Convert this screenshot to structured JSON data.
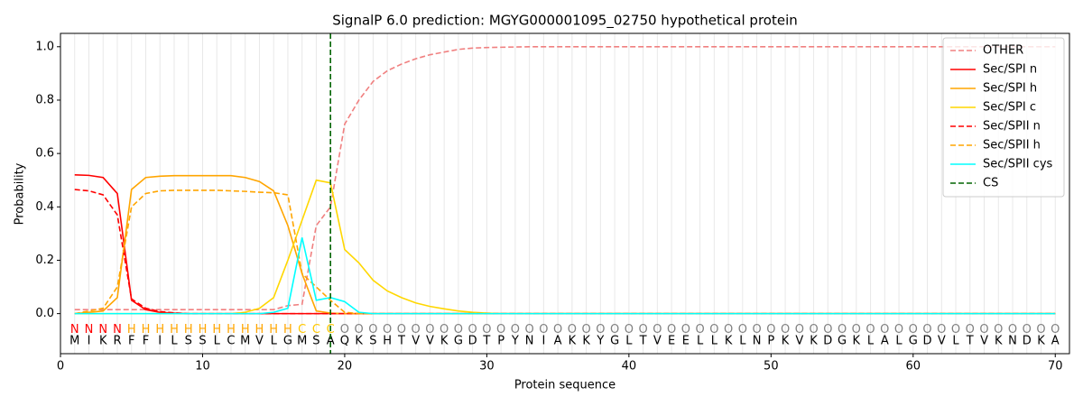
{
  "chart_data": {
    "type": "line",
    "title": "SignalP 6.0 prediction: MGYG000001095_02750 hypothetical protein",
    "xlabel": "Protein sequence",
    "ylabel": "Probability",
    "x": [
      1,
      2,
      3,
      4,
      5,
      6,
      7,
      8,
      9,
      10,
      11,
      12,
      13,
      14,
      15,
      16,
      17,
      18,
      19,
      20,
      21,
      22,
      23,
      24,
      25,
      26,
      27,
      28,
      29,
      30,
      31,
      32,
      33,
      34,
      35,
      36,
      37,
      38,
      39,
      40,
      41,
      42,
      43,
      44,
      45,
      46,
      47,
      48,
      49,
      50,
      51,
      52,
      53,
      54,
      55,
      56,
      57,
      58,
      59,
      60,
      61,
      62,
      63,
      64,
      65,
      66,
      67,
      68,
      69,
      70
    ],
    "sequence": [
      "M",
      "I",
      "K",
      "R",
      "F",
      "F",
      "I",
      "L",
      "S",
      "S",
      "L",
      "C",
      "M",
      "V",
      "L",
      "G",
      "M",
      "S",
      "A",
      "Q",
      "K",
      "S",
      "H",
      "T",
      "V",
      "V",
      "K",
      "G",
      "D",
      "T",
      "P",
      "Y",
      "N",
      "I",
      "A",
      "K",
      "K",
      "Y",
      "G",
      "L",
      "T",
      "V",
      "E",
      "E",
      "L",
      "L",
      "K",
      "L",
      "N",
      "P",
      "K",
      "V",
      "K",
      "D",
      "G",
      "K",
      "L",
      "A",
      "L",
      "G",
      "D",
      "V",
      "L",
      "T",
      "V",
      "K",
      "N",
      "D",
      "K",
      "A"
    ],
    "labels": [
      "N",
      "N",
      "N",
      "N",
      "H",
      "H",
      "H",
      "H",
      "H",
      "H",
      "H",
      "H",
      "H",
      "H",
      "H",
      "H",
      "C",
      "C",
      "C",
      "O",
      "O",
      "O",
      "O",
      "O",
      "O",
      "O",
      "O",
      "O",
      "O",
      "O",
      "O",
      "O",
      "O",
      "O",
      "O",
      "O",
      "O",
      "O",
      "O",
      "O",
      "O",
      "O",
      "O",
      "O",
      "O",
      "O",
      "O",
      "O",
      "O",
      "O",
      "O",
      "O",
      "O",
      "O",
      "O",
      "O",
      "O",
      "O",
      "O",
      "O",
      "O",
      "O",
      "O",
      "O",
      "O",
      "O",
      "O",
      "O",
      "O",
      "O"
    ],
    "label_colors": {
      "N": "#ff0000",
      "H": "#ffa500",
      "C": "#ffc800",
      "O": "#808080"
    },
    "series": [
      {
        "name": "OTHER",
        "color": "#f08080",
        "dash": true,
        "values": [
          0.015,
          0.015,
          0.015,
          0.015,
          0.015,
          0.015,
          0.015,
          0.015,
          0.015,
          0.015,
          0.015,
          0.015,
          0.015,
          0.015,
          0.015,
          0.03,
          0.035,
          0.33,
          0.4,
          0.71,
          0.8,
          0.87,
          0.91,
          0.935,
          0.955,
          0.97,
          0.98,
          0.99,
          0.995,
          0.997,
          0.998,
          0.999,
          1,
          1,
          1,
          1,
          1,
          1,
          1,
          1,
          1,
          1,
          1,
          1,
          1,
          1,
          1,
          1,
          1,
          1,
          1,
          1,
          1,
          1,
          1,
          1,
          1,
          1,
          1,
          1,
          1,
          1,
          1,
          1,
          1,
          1,
          1,
          1,
          1,
          1
        ]
      },
      {
        "name": "Sec/SPI n",
        "color": "#ff0000",
        "dash": false,
        "values": [
          0.52,
          0.518,
          0.51,
          0.45,
          0.05,
          0.015,
          0.005,
          0.002,
          0,
          0,
          0,
          0,
          0,
          0,
          0,
          0,
          0,
          0,
          0,
          0,
          0,
          0,
          0,
          0,
          0,
          0,
          0,
          0,
          0,
          0,
          0,
          0,
          0,
          0,
          0,
          0,
          0,
          0,
          0,
          0,
          0,
          0,
          0,
          0,
          0,
          0,
          0,
          0,
          0,
          0,
          0,
          0,
          0,
          0,
          0,
          0,
          0,
          0,
          0,
          0,
          0,
          0,
          0,
          0,
          0,
          0,
          0,
          0,
          0,
          0
        ]
      },
      {
        "name": "Sec/SPI h",
        "color": "#ffa500",
        "dash": false,
        "values": [
          0,
          0.005,
          0.01,
          0.06,
          0.465,
          0.51,
          0.515,
          0.517,
          0.517,
          0.517,
          0.517,
          0.517,
          0.51,
          0.495,
          0.46,
          0.33,
          0.15,
          0.01,
          0.002,
          0,
          0,
          0,
          0,
          0,
          0,
          0,
          0,
          0,
          0,
          0,
          0,
          0,
          0,
          0,
          0,
          0,
          0,
          0,
          0,
          0,
          0,
          0,
          0,
          0,
          0,
          0,
          0,
          0,
          0,
          0,
          0,
          0,
          0,
          0,
          0,
          0,
          0,
          0,
          0,
          0,
          0,
          0,
          0,
          0,
          0,
          0,
          0,
          0,
          0,
          0
        ]
      },
      {
        "name": "Sec/SPI c",
        "color": "#ffd700",
        "dash": false,
        "values": [
          0,
          0,
          0,
          0,
          0,
          0,
          0,
          0,
          0,
          0,
          0,
          0,
          0.005,
          0.02,
          0.06,
          0.2,
          0.35,
          0.5,
          0.49,
          0.24,
          0.19,
          0.125,
          0.085,
          0.06,
          0.04,
          0.027,
          0.018,
          0.01,
          0.005,
          0.002,
          0,
          0,
          0,
          0,
          0,
          0,
          0,
          0,
          0,
          0,
          0,
          0,
          0,
          0,
          0,
          0,
          0,
          0,
          0,
          0,
          0,
          0,
          0,
          0,
          0,
          0,
          0,
          0,
          0,
          0,
          0,
          0,
          0,
          0,
          0,
          0,
          0,
          0,
          0,
          0
        ]
      },
      {
        "name": "Sec/SPII n",
        "color": "#ff0000",
        "dash": true,
        "values": [
          0.465,
          0.46,
          0.445,
          0.37,
          0.055,
          0.02,
          0.008,
          0.003,
          0,
          0,
          0,
          0,
          0,
          0,
          0,
          0,
          0,
          0,
          0,
          0,
          0,
          0,
          0,
          0,
          0,
          0,
          0,
          0,
          0,
          0,
          0,
          0,
          0,
          0,
          0,
          0,
          0,
          0,
          0,
          0,
          0,
          0,
          0,
          0,
          0,
          0,
          0,
          0,
          0,
          0,
          0,
          0,
          0,
          0,
          0,
          0,
          0,
          0,
          0,
          0,
          0,
          0,
          0,
          0,
          0,
          0,
          0,
          0,
          0,
          0
        ]
      },
      {
        "name": "Sec/SPII h",
        "color": "#ffa500",
        "dash": true,
        "values": [
          0,
          0.01,
          0.02,
          0.1,
          0.4,
          0.45,
          0.46,
          0.462,
          0.462,
          0.462,
          0.462,
          0.46,
          0.458,
          0.455,
          0.453,
          0.445,
          0.15,
          0.1,
          0.05,
          0.005,
          0,
          0,
          0,
          0,
          0,
          0,
          0,
          0,
          0,
          0,
          0,
          0,
          0,
          0,
          0,
          0,
          0,
          0,
          0,
          0,
          0,
          0,
          0,
          0,
          0,
          0,
          0,
          0,
          0,
          0,
          0,
          0,
          0,
          0,
          0,
          0,
          0,
          0,
          0,
          0,
          0,
          0,
          0,
          0,
          0,
          0,
          0,
          0,
          0,
          0
        ]
      },
      {
        "name": "Sec/SPII cys",
        "color": "#00ffff",
        "dash": false,
        "values": [
          0,
          0,
          0,
          0,
          0,
          0,
          0,
          0,
          0,
          0,
          0,
          0,
          0,
          0,
          0.005,
          0.02,
          0.285,
          0.05,
          0.06,
          0.045,
          0.005,
          0,
          0,
          0,
          0,
          0,
          0,
          0,
          0,
          0,
          0,
          0,
          0,
          0,
          0,
          0,
          0,
          0,
          0,
          0,
          0,
          0,
          0,
          0,
          0,
          0,
          0,
          0,
          0,
          0,
          0,
          0,
          0,
          0,
          0,
          0,
          0,
          0,
          0,
          0,
          0,
          0,
          0,
          0,
          0,
          0,
          0,
          0,
          0,
          0
        ]
      }
    ],
    "cs": {
      "name": "CS",
      "color": "#006400",
      "x": 19
    },
    "xlim": [
      0,
      71
    ],
    "ylim": [
      -0.15,
      1.05
    ],
    "xticks": [
      0,
      10,
      20,
      30,
      40,
      50,
      60,
      70
    ],
    "yticks": [
      {
        "value": 0,
        "label": "0.0"
      },
      {
        "value": 0.2,
        "label": "0.2"
      },
      {
        "value": 0.4,
        "label": "0.4"
      },
      {
        "value": 0.6,
        "label": "0.6"
      },
      {
        "value": 0.8,
        "label": "0.8"
      },
      {
        "value": 1,
        "label": "1.0"
      }
    ],
    "grid": "x",
    "legend": "upper right"
  }
}
